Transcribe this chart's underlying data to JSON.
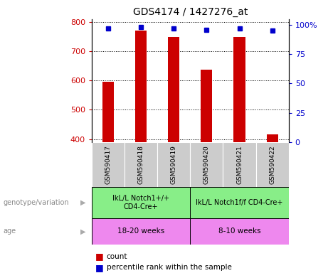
{
  "title": "GDS4174 / 1427276_at",
  "samples": [
    "GSM590417",
    "GSM590418",
    "GSM590419",
    "GSM590420",
    "GSM590421",
    "GSM590422"
  ],
  "counts": [
    597,
    770,
    749,
    637,
    749,
    415
  ],
  "percentiles": [
    97,
    98,
    97,
    96,
    97,
    95
  ],
  "bar_color": "#cc0000",
  "dot_color": "#0000cc",
  "ylim_left": [
    390,
    810
  ],
  "ylim_right": [
    0,
    105
  ],
  "yticks_left": [
    400,
    500,
    600,
    700,
    800
  ],
  "yticks_right": [
    0,
    25,
    50,
    75,
    100
  ],
  "ytick_labels_right": [
    "0",
    "25",
    "50",
    "75",
    "100%"
  ],
  "group1_label": "IkL/L Notch1+/+\nCD4-Cre+",
  "group2_label": "IkL/L Notch1f/f CD4-Cre+",
  "age1_label": "18-20 weeks",
  "age2_label": "8-10 weeks",
  "group_color": "#88ee88",
  "age_color": "#ee88ee",
  "sample_bg_color": "#cccccc",
  "legend_count_label": "count",
  "legend_pct_label": "percentile rank within the sample",
  "genotype_label": "genotype/variation",
  "age_row_label": "age"
}
